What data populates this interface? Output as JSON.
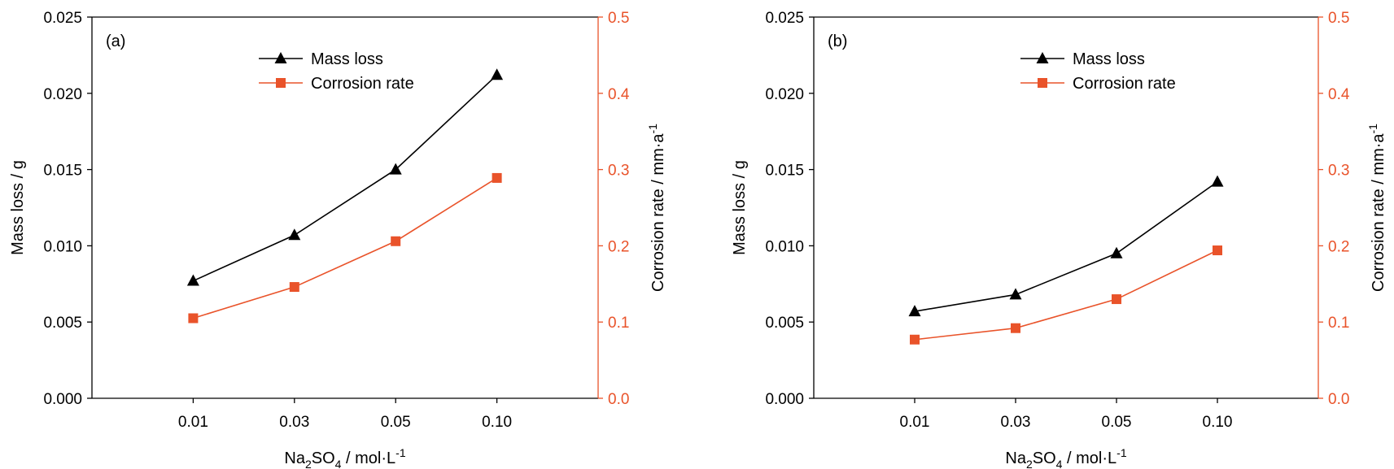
{
  "chart_data": [
    {
      "type": "line",
      "panel_label": "(a)",
      "categories": [
        "0.01",
        "0.03",
        "0.05",
        "0.10"
      ],
      "xlabel": {
        "main": "Na",
        "sub1": "2",
        "mid": "SO",
        "sub2": "4",
        "unit": " / mol·L",
        "sup": "-1"
      },
      "ylabel": "Mass loss / g",
      "y2label": {
        "main": "Corrosion rate / mm·a",
        "sup": "-1"
      },
      "ylim": [
        0,
        0.025
      ],
      "y2lim": [
        0,
        0.5
      ],
      "yticks": [
        "0.000",
        "0.005",
        "0.010",
        "0.015",
        "0.020",
        "0.025"
      ],
      "y2ticks": [
        "0.0",
        "0.1",
        "0.2",
        "0.3",
        "0.4",
        "0.5"
      ],
      "legend_position": "top-center",
      "series": [
        {
          "name": "Mass loss",
          "axis": "left",
          "color": "#000000",
          "marker": "triangle",
          "values": [
            0.0077,
            0.0107,
            0.015,
            0.0212
          ]
        },
        {
          "name": "Corrosion rate",
          "axis": "right",
          "color": "#e9532a",
          "marker": "square",
          "values": [
            0.105,
            0.146,
            0.206,
            0.289
          ]
        }
      ]
    },
    {
      "type": "line",
      "panel_label": "(b)",
      "categories": [
        "0.01",
        "0.03",
        "0.05",
        "0.10"
      ],
      "xlabel": {
        "main": "Na",
        "sub1": "2",
        "mid": "SO",
        "sub2": "4",
        "unit": " / mol·L",
        "sup": "-1"
      },
      "ylabel": "Mass loss / g",
      "y2label": {
        "main": "Corrosion rate / mm·a",
        "sup": "-1"
      },
      "ylim": [
        0,
        0.025
      ],
      "y2lim": [
        0,
        0.5
      ],
      "yticks": [
        "0.000",
        "0.005",
        "0.010",
        "0.015",
        "0.020",
        "0.025"
      ],
      "y2ticks": [
        "0.0",
        "0.1",
        "0.2",
        "0.3",
        "0.4",
        "0.5"
      ],
      "legend_position": "top-center",
      "series": [
        {
          "name": "Mass loss",
          "axis": "left",
          "color": "#000000",
          "marker": "triangle",
          "values": [
            0.0057,
            0.0068,
            0.0095,
            0.0142
          ]
        },
        {
          "name": "Corrosion rate",
          "axis": "right",
          "color": "#e9532a",
          "marker": "square",
          "values": [
            0.077,
            0.092,
            0.13,
            0.194
          ]
        }
      ]
    }
  ]
}
